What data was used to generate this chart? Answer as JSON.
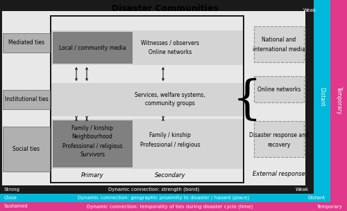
{
  "title": "Disaster Communities",
  "cyan_color": "#00b8d9",
  "magenta_color": "#e0388a",
  "black_color": "#1a1a1a",
  "dark_gray": "#808080",
  "med_gray": "#b0b0b0",
  "light_gray": "#d4d4d4",
  "very_light_gray": "#e8e8e8",
  "left_labels": [
    "Mediated ties",
    "Institutional ties",
    "Social ties"
  ],
  "primary_top": "Local / community media",
  "primary_bottom": [
    "Family / kinship",
    "Neighbourhood",
    "Professional / religious",
    "Survivors"
  ],
  "secondary_top": [
    "Witnesses / observers",
    "Online networks"
  ],
  "secondary_middle": [
    "Services, welfare systems,",
    "community groups"
  ],
  "secondary_bottom": [
    "Family / kinship",
    "Professional / religious"
  ],
  "external_top_lines": [
    "National and",
    "international media"
  ],
  "external_mid_lines": [
    "Online networks"
  ],
  "external_bot_lines": [
    "Disaster response and",
    "recovery"
  ],
  "label_primary": "Primary",
  "label_secondary": "Secondary",
  "label_external": "External response",
  "bottom_row1_left": "Strong",
  "bottom_row1_center": "Dynamic connection: strength (bond)",
  "bottom_row1_right": "Weak",
  "bottom_row2_left": "Close",
  "bottom_row2_center": "Dynamic connection: geographic proximity to disaster / hazard (place)",
  "bottom_row2_right": "Distant",
  "bottom_row3_left": "Sustained",
  "bottom_row3_center": "Dynamic connection: temporality of ties during disaster cycle (time)",
  "bottom_row3_right": "Temporary",
  "side_weak": "Weak",
  "side_distant": "Distant",
  "side_temporary": "Temporary"
}
